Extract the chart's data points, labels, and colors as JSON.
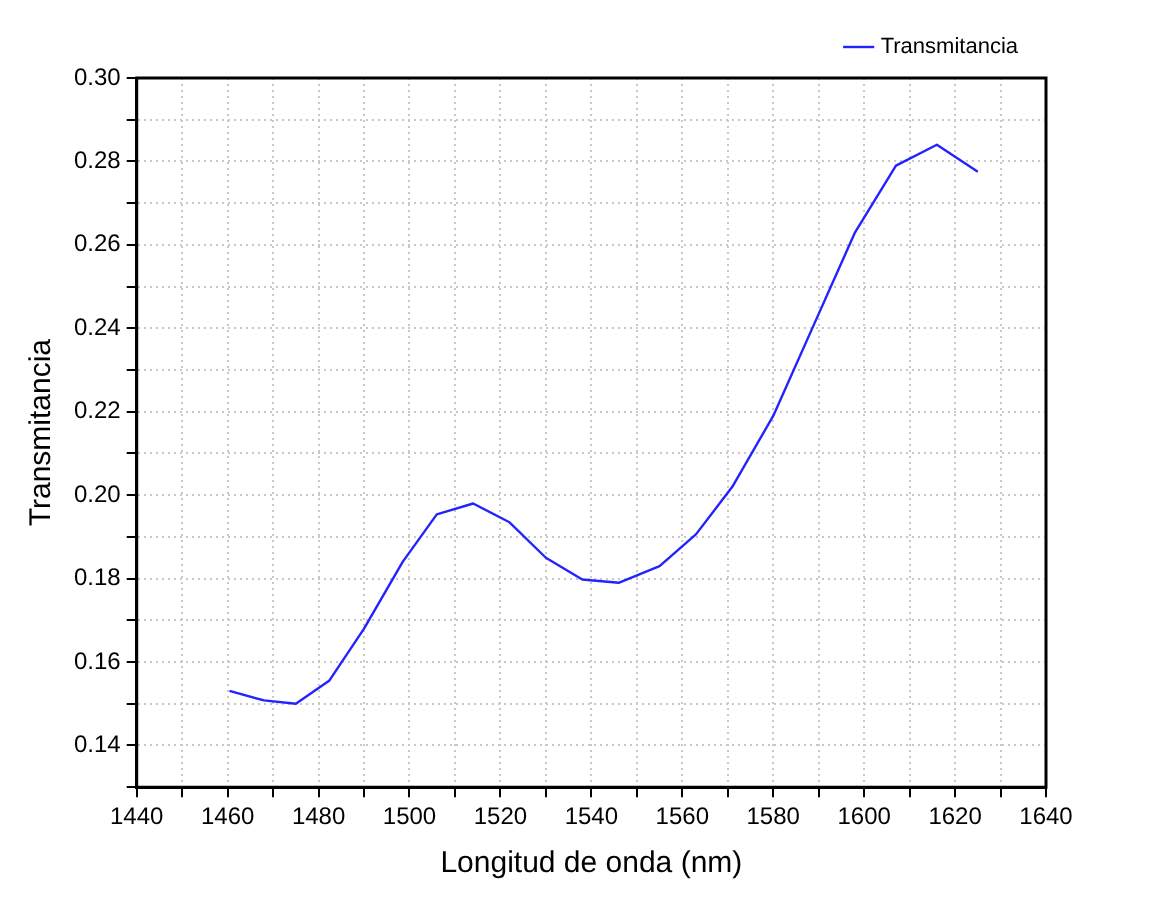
{
  "chart_data": {
    "type": "line",
    "xlabel": "Longitud de onda (nm)",
    "ylabel": "Transmitancia",
    "x": [
      1460.4,
      1468,
      1475,
      1482.4,
      1490,
      1498.5,
      1506,
      1514,
      1522,
      1530,
      1538,
      1546,
      1555,
      1563,
      1571,
      1580,
      1589,
      1598,
      1607,
      1616,
      1625
    ],
    "series": [
      {
        "name": "Transmitancia",
        "color": "#2323ff",
        "values": [
          0.1531,
          0.1508,
          0.15,
          0.1556,
          0.168,
          0.184,
          0.1954,
          0.198,
          0.1935,
          0.185,
          0.1798,
          0.179,
          0.183,
          0.1906,
          0.202,
          0.219,
          0.241,
          0.263,
          0.279,
          0.284,
          0.2775
        ]
      }
    ],
    "xlim": [
      1440,
      1640
    ],
    "xticks": [
      1440,
      {
        "value": 1450,
        "label": null
      },
      1460,
      {
        "value": 1470,
        "label": null
      },
      1480,
      {
        "value": 1490,
        "label": null
      },
      1500,
      {
        "value": 1510,
        "label": null
      },
      1520,
      {
        "value": 1530,
        "label": null
      },
      1540,
      {
        "value": 1550,
        "label": null
      },
      1560,
      {
        "value": 1570,
        "label": null
      },
      1580,
      {
        "value": 1590,
        "label": null
      },
      1600,
      {
        "value": 1610,
        "label": null
      },
      1620,
      {
        "value": 1630,
        "label": null
      },
      1640
    ],
    "ylim": [
      0.13,
      0.3
    ],
    "yticks": [
      {
        "value": 0.13,
        "label": null
      },
      {
        "value": 0.14,
        "label": "0.14"
      },
      {
        "value": 0.15,
        "label": null
      },
      {
        "value": 0.16,
        "label": "0.16"
      },
      {
        "value": 0.17,
        "label": null
      },
      {
        "value": 0.18,
        "label": "0.18"
      },
      {
        "value": 0.19,
        "label": null
      },
      {
        "value": 0.2,
        "label": "0.20"
      },
      {
        "value": 0.21,
        "label": null
      },
      {
        "value": 0.22,
        "label": "0.22"
      },
      {
        "value": 0.23,
        "label": null
      },
      {
        "value": 0.24,
        "label": "0.24"
      },
      {
        "value": 0.25,
        "label": null
      },
      {
        "value": 0.26,
        "label": "0.26"
      },
      {
        "value": 0.27,
        "label": null
      },
      {
        "value": 0.28,
        "label": "0.28"
      },
      {
        "value": 0.29,
        "label": null
      },
      {
        "value": 0.3,
        "label": "0.30"
      }
    ],
    "grid": true,
    "legend": "top right",
    "marker": "none",
    "line_style": "solid"
  }
}
